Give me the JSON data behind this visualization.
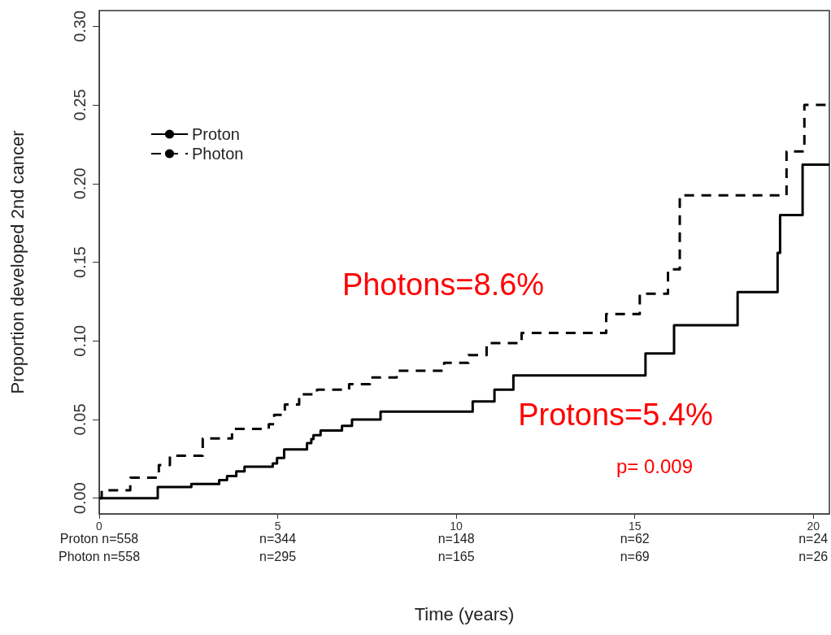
{
  "chart_data": {
    "type": "step",
    "xlabel": "Time (years)",
    "ylabel": "Proportion developed 2nd cancer",
    "xlim": [
      0,
      20.45
    ],
    "xticks": [
      0,
      5,
      10,
      15,
      20
    ],
    "ylim": [
      -0.01,
      0.31
    ],
    "yticks": [
      {
        "value": 0,
        "label": "0.00"
      },
      {
        "value": 0.05,
        "label": "0.05"
      },
      {
        "value": 0.1,
        "label": "0.10"
      },
      {
        "value": 0.15,
        "label": "0.15"
      },
      {
        "value": 0.2,
        "label": "0.20"
      },
      {
        "value": 0.25,
        "label": "0.25"
      },
      {
        "value": 0.3,
        "label": "0.30"
      }
    ],
    "legend": "top left",
    "grid": false,
    "series": [
      {
        "name": "Proton",
        "color": "#000000",
        "line_style": "solid",
        "x": [
          0,
          1.64,
          2.58,
          3.36,
          3.58,
          3.84,
          4.07,
          4.86,
          4.98,
          5.18,
          5.82,
          5.94,
          6.0,
          6.2,
          6.8,
          7.08,
          7.88,
          10.46,
          11.07,
          11.6,
          15.3,
          16.1,
          17.88,
          19.0,
          19.07,
          19.7,
          20.45
        ],
        "values": [
          0,
          0.007,
          0.009,
          0.0115,
          0.014,
          0.017,
          0.02,
          0.022,
          0.0255,
          0.031,
          0.035,
          0.0375,
          0.04,
          0.043,
          0.046,
          0.05,
          0.055,
          0.0615,
          0.069,
          0.078,
          0.092,
          0.11,
          0.131,
          0.156,
          0.18,
          0.212,
          0.212
        ]
      },
      {
        "name": "Photon",
        "color": "#000000",
        "line_style": "dashed",
        "x": [
          0,
          0.07,
          0.87,
          1.67,
          1.98,
          2.9,
          3.72,
          4.75,
          4.9,
          5.2,
          5.6,
          6.1,
          7.0,
          7.58,
          8.33,
          9.66,
          10.34,
          10.85,
          11.83,
          14.2,
          15.14,
          15.93,
          16.26,
          19.25,
          19.75,
          20.45
        ],
        "values": [
          0,
          0.005,
          0.013,
          0.021,
          0.027,
          0.038,
          0.044,
          0.047,
          0.053,
          0.0595,
          0.066,
          0.069,
          0.0725,
          0.0767,
          0.081,
          0.086,
          0.091,
          0.0985,
          0.105,
          0.117,
          0.13,
          0.1455,
          0.1925,
          0.2205,
          0.25,
          0.25
        ]
      }
    ],
    "annotations": [
      "Photons=8.6%",
      "Protons=5.4%",
      "p= 0.009",
      "Proton n=558",
      "n=344",
      "n=148",
      "n=62",
      "n=24",
      "Photon n=558",
      "n=295",
      "n=165",
      "n=69",
      "n=26"
    ]
  }
}
